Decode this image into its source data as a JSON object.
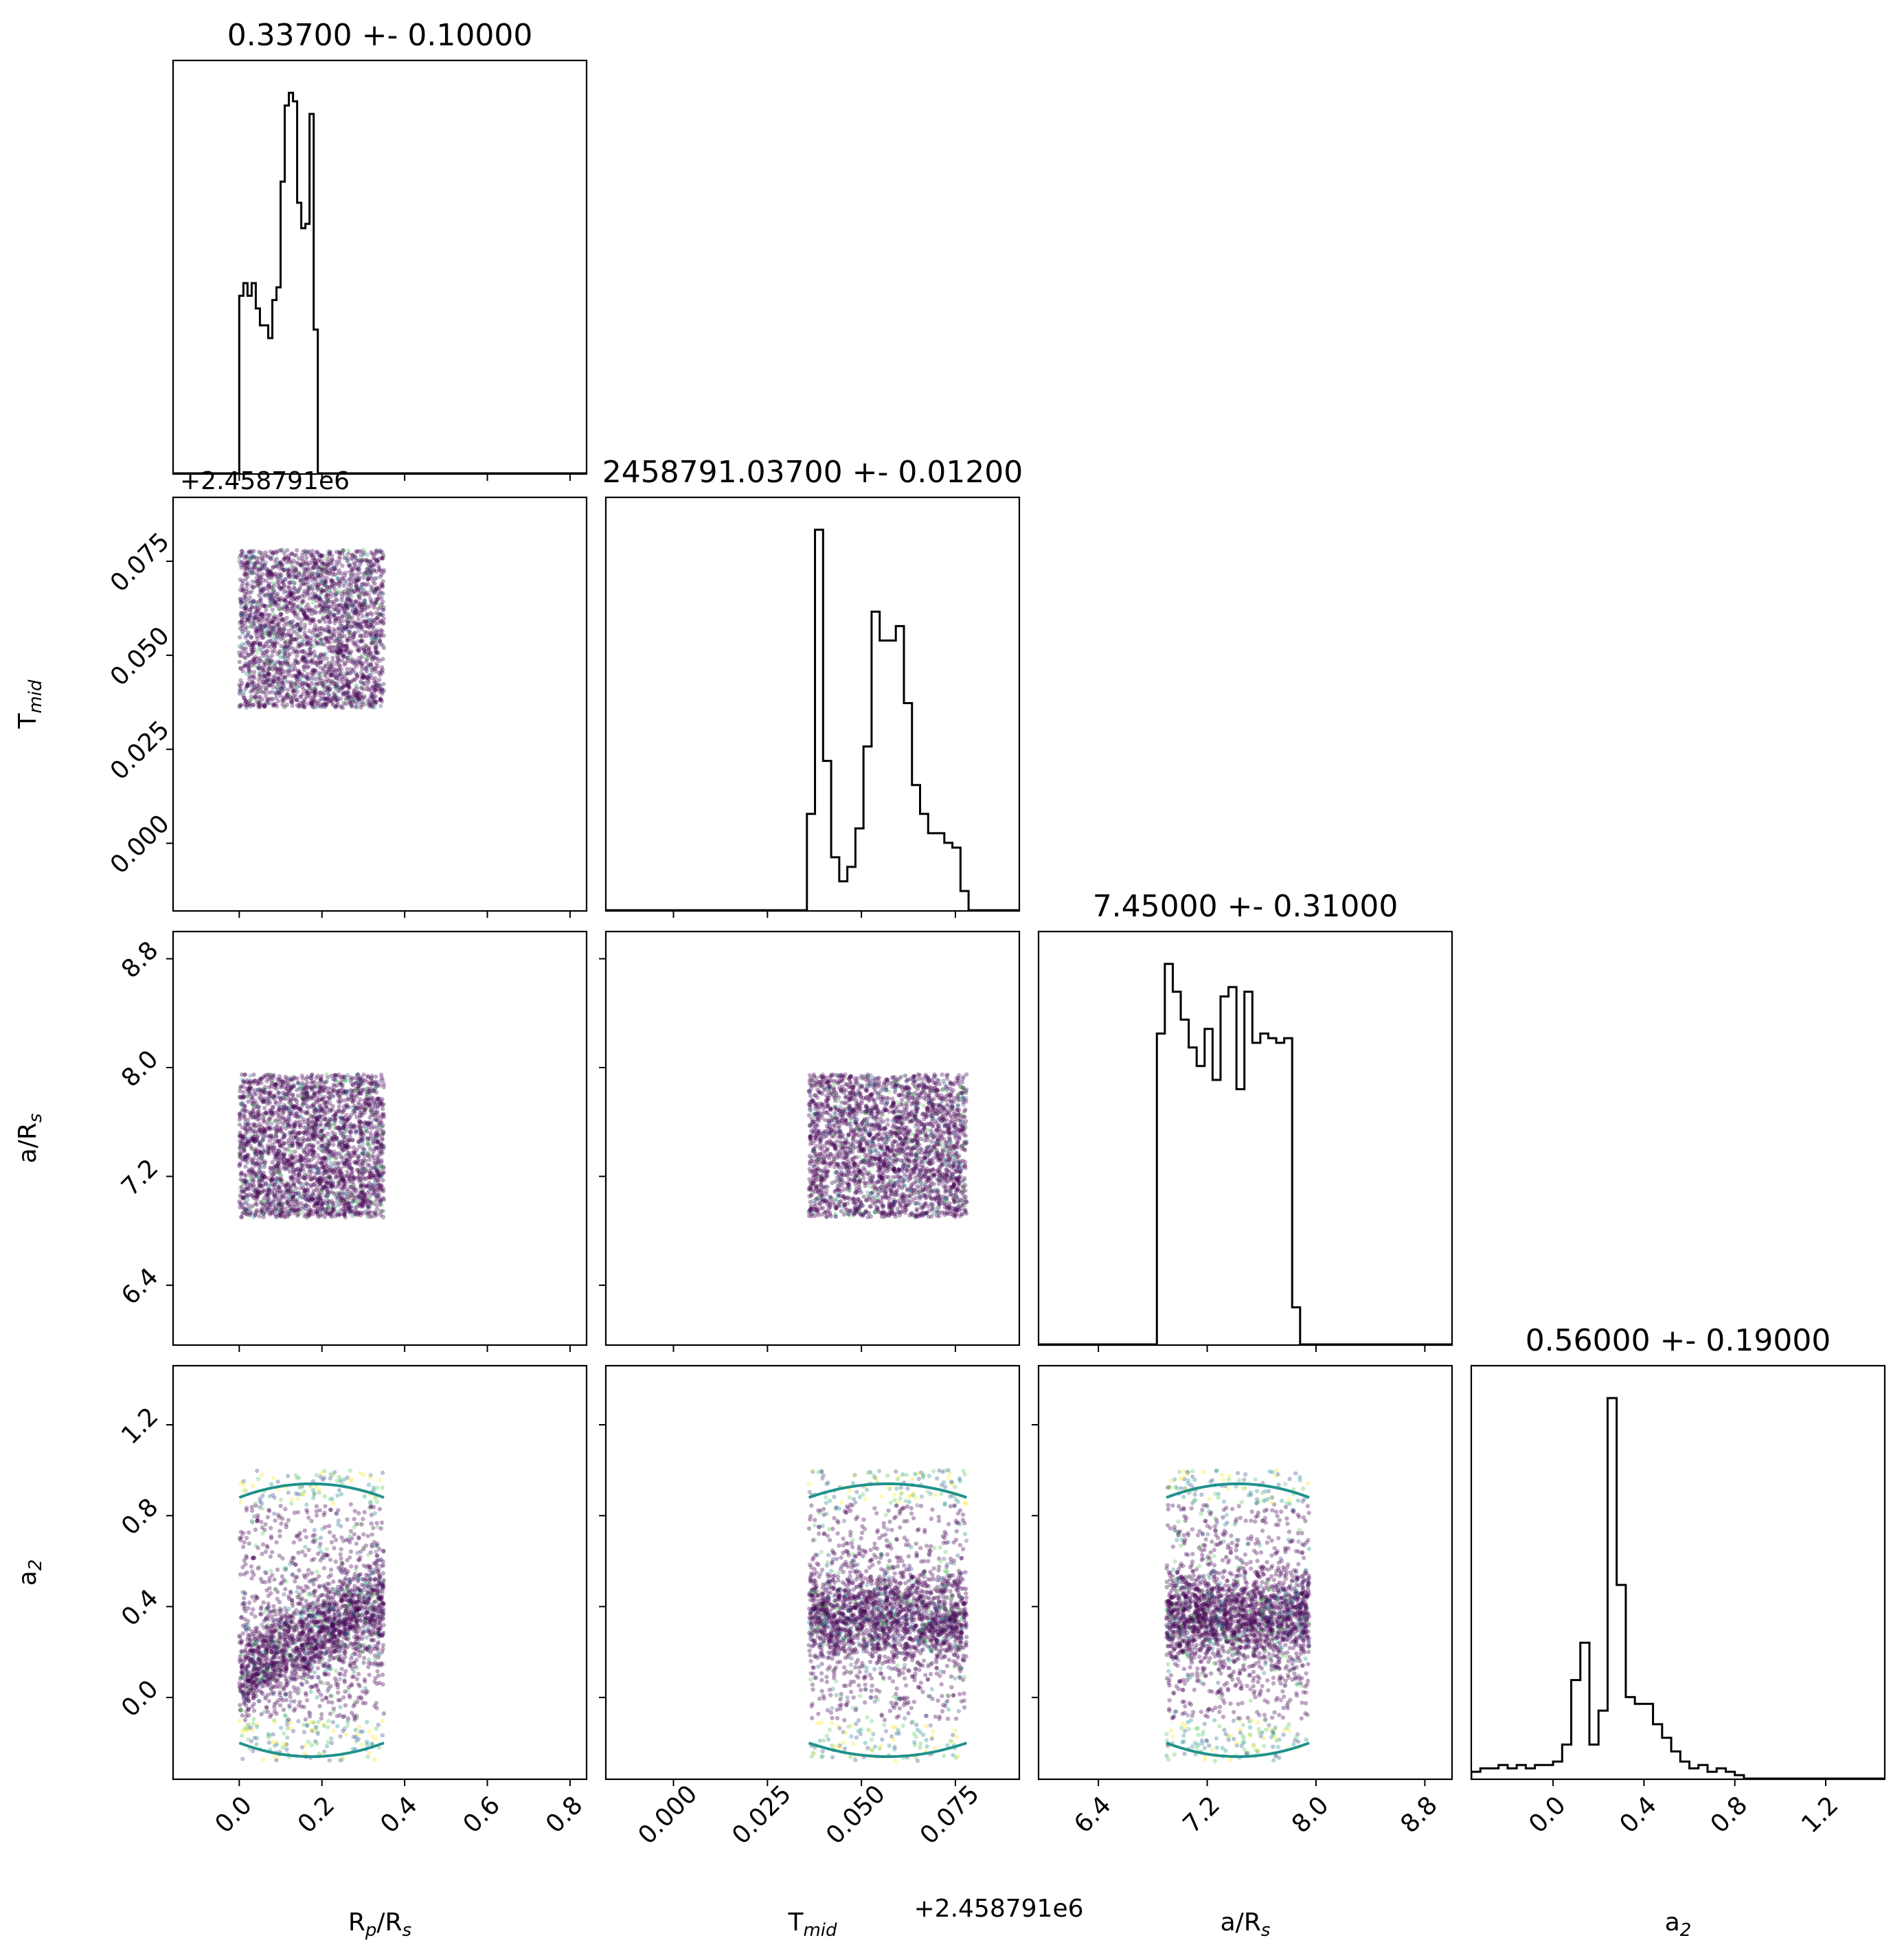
{
  "chart_data": {
    "type": "corner",
    "parameters": [
      {
        "key": "rp",
        "label": "R",
        "label_sub": "p",
        "label_rest": "/R",
        "label_sub2": "s",
        "title": "0.33700 +- 0.10000",
        "range": [
          -0.16,
          0.84
        ],
        "ticks": [
          "0.0",
          "0.2",
          "0.4",
          "0.6",
          "0.8"
        ],
        "tick_values": [
          0.0,
          0.2,
          0.4,
          0.6,
          0.8
        ]
      },
      {
        "key": "tmid",
        "label": "T",
        "label_sub": "mid",
        "label_rest": "",
        "label_sub2": "",
        "title": "2458791.03700 +- 0.01200",
        "offset_text": "+2.458791e6",
        "range": [
          -0.018,
          0.092
        ],
        "ticks": [
          "0.000",
          "0.025",
          "0.050",
          "0.075"
        ],
        "tick_values": [
          0.0,
          0.025,
          0.05,
          0.075
        ]
      },
      {
        "key": "a",
        "label": "a/R",
        "label_sub": "s",
        "label_rest": "",
        "label_sub2": "",
        "title": "7.45000 +- 0.31000",
        "range": [
          5.96,
          9.0
        ],
        "ticks": [
          "6.4",
          "7.2",
          "8.0",
          "8.8"
        ],
        "tick_values": [
          6.4,
          7.2,
          8.0,
          8.8
        ]
      },
      {
        "key": "a2",
        "label": "a",
        "label_sub": "2",
        "label_rest": "",
        "label_sub2": "",
        "title": "0.56000 +- 0.19000",
        "range": [
          -0.36,
          1.46
        ],
        "ticks": [
          "0.0",
          "0.4",
          "0.8",
          "1.2"
        ],
        "tick_values": [
          0.0,
          0.4,
          0.8,
          1.2
        ]
      }
    ],
    "histograms": {
      "rp": {
        "edges_from": -0.01,
        "bin_width": 0.01,
        "counts": [
          0,
          42,
          45,
          42,
          45,
          39,
          35,
          35,
          32,
          41,
          44,
          69,
          87,
          90,
          88,
          64,
          58,
          59,
          85,
          34,
          0
        ]
      },
      "tmid": {
        "edges_from": 0.0355,
        "bin_width": 0.00215,
        "counts": [
          20,
          79,
          31,
          11,
          6,
          9,
          17,
          34,
          62,
          56,
          56,
          59,
          43,
          26,
          20,
          16,
          16,
          14,
          13,
          4,
          0
        ]
      },
      "a": {
        "edges_from": 6.83,
        "bin_width": 0.0585,
        "counts": [
          67,
          82,
          76,
          70,
          64,
          60,
          68,
          57,
          75,
          77,
          55,
          76,
          65,
          67,
          66,
          65,
          66,
          8,
          0
        ]
      },
      "a2": {
        "edges_from": -0.36,
        "bin_width": 0.04,
        "counts": [
          2,
          3,
          3,
          4,
          3,
          4,
          3,
          4,
          4,
          5,
          10,
          29,
          40,
          10,
          20,
          112,
          57,
          24,
          22,
          22,
          16,
          12,
          8,
          5,
          3,
          4,
          2,
          3,
          2,
          1,
          0,
          0,
          0,
          0,
          0,
          0,
          0,
          0,
          0,
          0,
          0,
          0,
          0,
          0,
          0,
          0
        ]
      }
    },
    "scatter_regions": {
      "rp": [
        0.0,
        0.35
      ],
      "tmid": [
        0.036,
        0.078
      ],
      "a": [
        6.9,
        7.95
      ],
      "a2": [
        -0.28,
        1.0
      ]
    },
    "colors": {
      "viridis": [
        "#440154",
        "#3b528b",
        "#21918c",
        "#5ec962",
        "#fde725"
      ],
      "dominant": "#440154"
    },
    "grid": false,
    "legend": "none"
  }
}
